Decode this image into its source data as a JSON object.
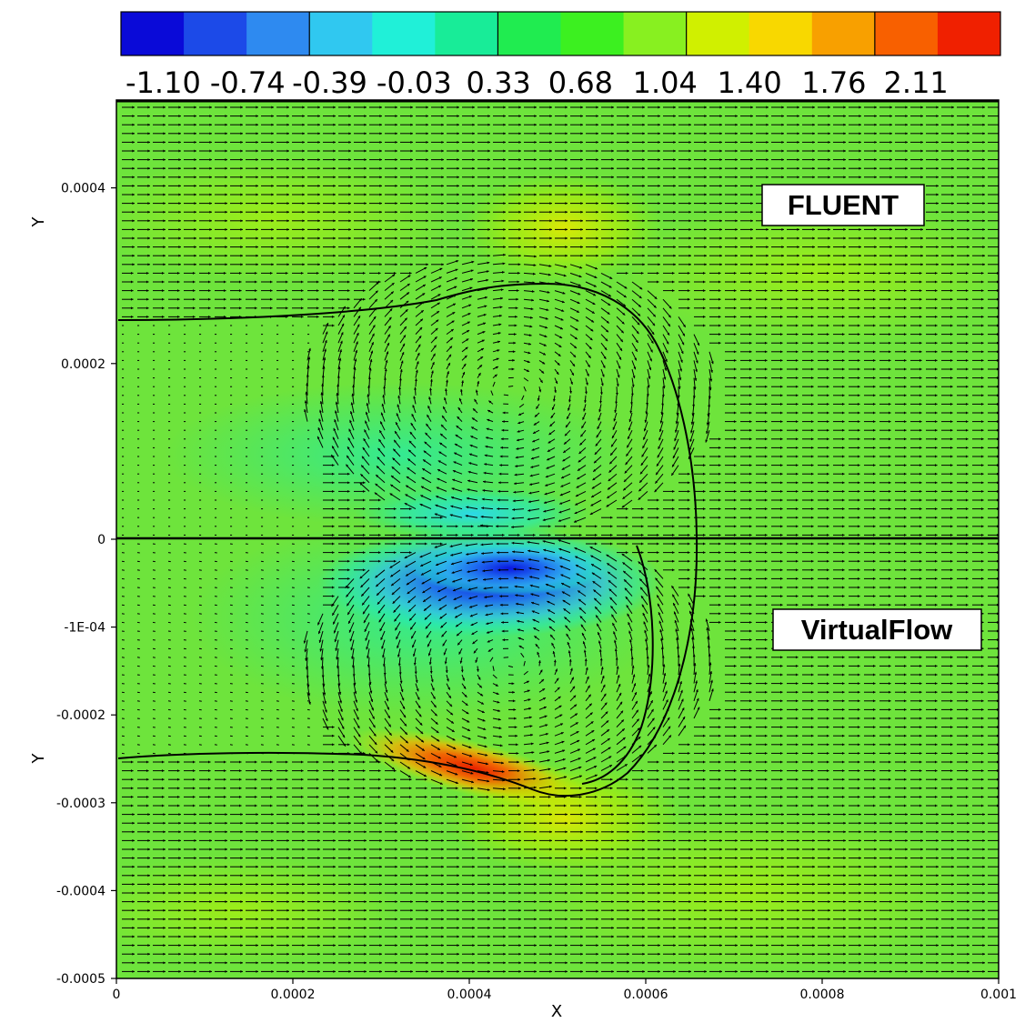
{
  "chart_data": {
    "type": "vector-field-contour",
    "xlabel": "X",
    "ylabel": "Y",
    "xlim": [
      0,
      0.001
    ],
    "ylim": [
      -0.0005,
      0.0005
    ],
    "x_ticks": [
      {
        "value": 0,
        "label": "0"
      },
      {
        "value": 0.0002,
        "label": "0.0002"
      },
      {
        "value": 0.0004,
        "label": "0.0004"
      },
      {
        "value": 0.0006,
        "label": "0.0006"
      },
      {
        "value": 0.0008,
        "label": "0.0008"
      },
      {
        "value": 0.001,
        "label": "0.001"
      }
    ],
    "y_ticks": [
      {
        "value": 0.0004,
        "label": "0.0004"
      },
      {
        "value": 0.0002,
        "label": "0.0002"
      },
      {
        "value": 0,
        "label": "0"
      },
      {
        "value": -0.0001,
        "label": "-1E-04"
      },
      {
        "value": -0.0002,
        "label": "-0.0002"
      },
      {
        "value": -0.0003,
        "label": "-0.0003"
      },
      {
        "value": -0.0004,
        "label": "-0.0004"
      },
      {
        "value": -0.0005,
        "label": "-0.0005"
      }
    ],
    "colorbar": {
      "min": -1.28,
      "max": 2.47,
      "labels": [
        "-1.10",
        "-0.74",
        "-0.39",
        "-0.03",
        "0.33",
        "0.68",
        "1.04",
        "1.40",
        "1.76",
        "2.11"
      ],
      "label_values": [
        -1.1,
        -0.74,
        -0.39,
        -0.03,
        0.33,
        0.68,
        1.04,
        1.4,
        1.76,
        2.11
      ],
      "colors": [
        "#0a0ad8",
        "#1c4ae8",
        "#2e8af0",
        "#30c8f0",
        "#20f0d8",
        "#18ec98",
        "#20ec50",
        "#3cf020",
        "#88f020",
        "#d0f000",
        "#f8d800",
        "#f8a000",
        "#f86000",
        "#f02000"
      ]
    },
    "panels": [
      {
        "name": "FLUENT",
        "y_range": [
          0,
          0.0005
        ]
      },
      {
        "name": "VirtualFlow",
        "y_range": [
          -0.0005,
          0
        ]
      }
    ],
    "interface_curve_label": "free-surface / interface line"
  },
  "colors": {
    "background_field": "#6ee43c",
    "arrow": "#000000"
  }
}
